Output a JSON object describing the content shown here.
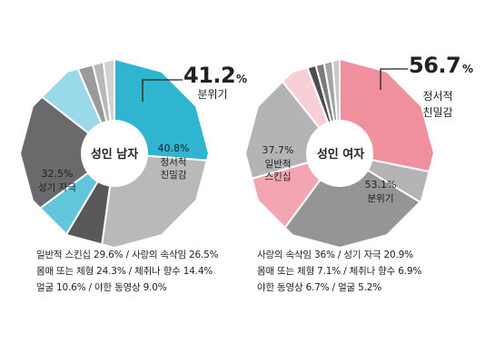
{
  "chart_data": [
    {
      "type": "pie",
      "center_title": "성인 남자",
      "slices": [
        {
          "name": "분위기",
          "value": 41.2,
          "color": "#2fb5cf"
        },
        {
          "name": "정서적 친밀감",
          "value": 40.8,
          "color": "#b9b9bb"
        },
        {
          "name": "",
          "value": 10.0,
          "color": "#58585a"
        },
        {
          "name": "",
          "value": 10.0,
          "color": "#61c5dc"
        },
        {
          "name": "성기 자극",
          "value": 32.5,
          "color": "#6a6a6c"
        },
        {
          "name": "",
          "value": 12.5,
          "color": "#9ad9e9"
        },
        {
          "name": "",
          "value": 4.2,
          "color": "#9a9a9c"
        },
        {
          "name": "",
          "value": 3.0,
          "color": "#b8b8ba"
        },
        {
          "name": "",
          "value": 3.0,
          "color": "#d2d2d4"
        }
      ],
      "labels": {
        "top_value": "41.2",
        "top_unit": "%",
        "top_name": "분위기",
        "slice2_value": "40.8%",
        "slice2_line1": "정서적",
        "slice2_line2": "친밀감",
        "slice5_value": "32.5%",
        "slice5_line1": "성기 자극"
      },
      "notes": [
        "일반적 스킨십 29.6% / 사랑의 속삭임 26.5%",
        "몸매 또는 체형 24.3% / 체취나 향수 14.4%",
        "얼굴 10.6% / 야한 동영상 9.0%"
      ]
    },
    {
      "type": "pie",
      "center_title": "성인 여자",
      "slices": [
        {
          "name": "정서적 친밀감",
          "value": 56.7,
          "color": "#f08f9e"
        },
        {
          "name": "",
          "value": 11.0,
          "color": "#b4b4b6"
        },
        {
          "name": "분위기",
          "value": 53.1,
          "color": "#959597"
        },
        {
          "name": "",
          "value": 21.0,
          "color": "#f3a6b2"
        },
        {
          "name": "일반적 스킨십",
          "value": 37.7,
          "color": "#b4b4b6"
        },
        {
          "name": "",
          "value": 10.0,
          "color": "#f8cfd6"
        },
        {
          "name": "",
          "value": 3.0,
          "color": "#4d4d4f"
        },
        {
          "name": "",
          "value": 3.0,
          "color": "#7c7c7e"
        },
        {
          "name": "",
          "value": 3.0,
          "color": "#a4a4a6"
        },
        {
          "name": "",
          "value": 2.5,
          "color": "#cacacc"
        }
      ],
      "labels": {
        "top_value": "56.7",
        "top_unit": "%",
        "top_name_line1": "정서적",
        "top_name_line2": "친밀감",
        "slice3_value": "53.1%",
        "slice3_line1": "분위기",
        "slice5_value": "37.7%",
        "slice5_line1": "일반적",
        "slice5_line2": "스킨십"
      },
      "notes": [
        "사랑의 속삭임 36% / 성기 자극 20.9%",
        "몸매 또는 체형 7.1% / 체취나 향수 6.9%",
        "야한 동영상 6.7% / 얼굴 5.2%"
      ]
    }
  ]
}
